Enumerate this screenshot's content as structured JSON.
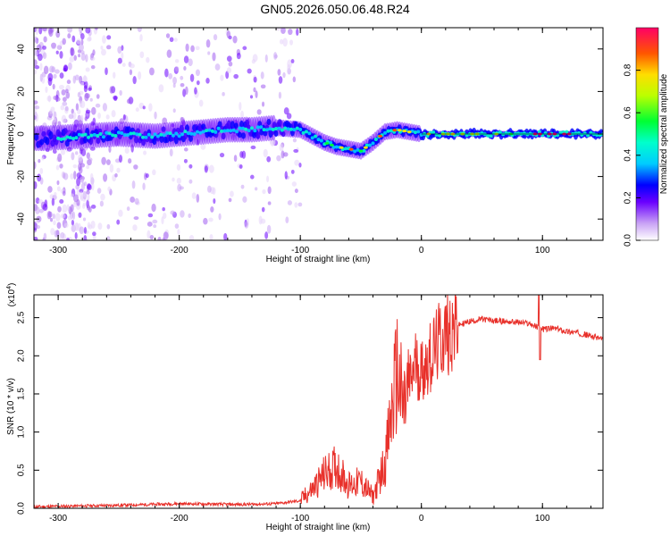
{
  "title": "GN05.2026.050.06.48.R24",
  "chart_data": [
    {
      "type": "heatmap",
      "xlabel": "Height of straight line (km)",
      "ylabel": "Frequency (Hz)",
      "xlim": [
        -320,
        150
      ],
      "ylim": [
        -50,
        50
      ],
      "x_ticks": [
        -300,
        -200,
        -100,
        0,
        100
      ],
      "y_ticks": [
        -40,
        -20,
        0,
        20,
        40
      ],
      "colorbar": {
        "label": "Normalized spectral amplitude",
        "range": [
          0.0,
          1.0
        ],
        "ticks": [
          0.0,
          0.2,
          0.4,
          0.6,
          0.8
        ]
      },
      "ridge": {
        "x": [
          -310,
          -280,
          -250,
          -220,
          -200,
          -180,
          -160,
          -140,
          -120,
          -100,
          -90,
          -80,
          -70,
          -60,
          -50,
          -40,
          -30,
          -20,
          -10,
          0,
          20,
          50,
          80,
          100,
          120,
          150
        ],
        "y": [
          -2,
          -1,
          0,
          -1,
          0,
          1,
          2,
          2,
          3,
          2,
          -1,
          -4,
          -6,
          -7,
          -8,
          -4,
          1,
          2,
          1,
          0,
          0,
          0,
          0,
          0,
          0,
          0
        ]
      }
    },
    {
      "type": "line",
      "xlabel": "Height of straight line (km)",
      "ylabel": "SNR (10 * v/v)",
      "y_scale_label": "(x10",
      "y_scale_exp": "4",
      "xlim": [
        -320,
        150
      ],
      "ylim": [
        0,
        2.8
      ],
      "x_ticks": [
        -300,
        -200,
        -100,
        0,
        100
      ],
      "y_ticks": [
        0.0,
        0.5,
        1.0,
        1.5,
        2.0,
        2.5
      ],
      "color": "#e8302a",
      "series": [
        {
          "name": "SNR",
          "x": [
            -320,
            -250,
            -200,
            -150,
            -120,
            -100,
            -90,
            -80,
            -70,
            -60,
            -50,
            -40,
            -30,
            -25,
            -20,
            -15,
            -10,
            -5,
            0,
            10,
            20,
            30,
            40,
            50,
            60,
            70,
            80,
            90,
            95,
            100,
            110,
            120,
            130,
            140,
            150
          ],
          "y": [
            0.02,
            0.04,
            0.06,
            0.05,
            0.06,
            0.1,
            0.25,
            0.45,
            0.55,
            0.3,
            0.35,
            0.15,
            0.6,
            1.2,
            1.8,
            1.3,
            1.6,
            1.9,
            1.8,
            2.05,
            2.3,
            2.4,
            2.45,
            2.48,
            2.46,
            2.45,
            2.44,
            2.42,
            2.38,
            2.35,
            2.36,
            2.32,
            2.3,
            2.26,
            2.22
          ]
        }
      ]
    }
  ]
}
